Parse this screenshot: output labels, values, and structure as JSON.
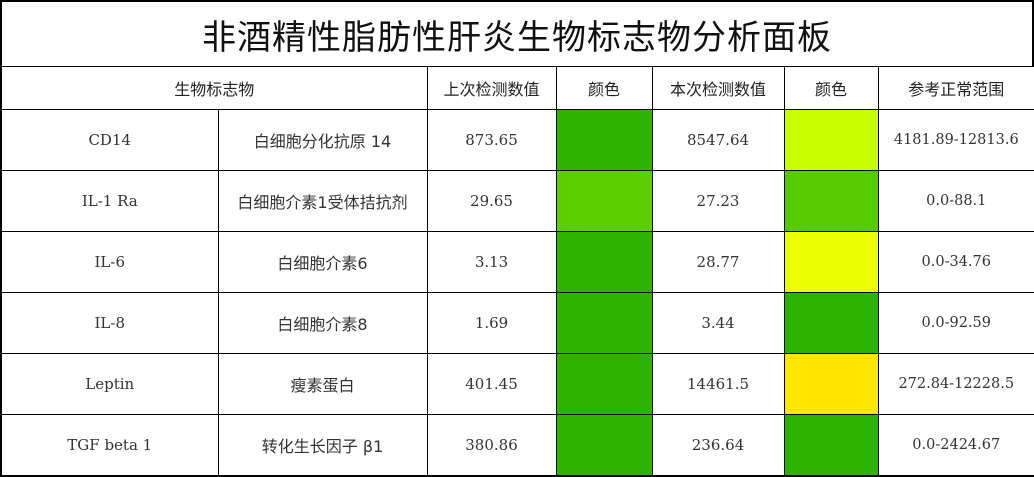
{
  "title": "非酒精性脂肪性肝炎生物标志物分析面板",
  "header": {
    "biomarker": "生物标志物",
    "previous_value": "上次检测数值",
    "previous_color": "颜色",
    "current_value": "本次检测数值",
    "current_color": "颜色",
    "reference_range": "参考正常范围"
  },
  "rows": [
    {
      "code": "CD14",
      "name": "白细胞分化抗原 14",
      "previous": "873.65",
      "previous_color": "#2db400",
      "current": "8547.64",
      "current_color": "#c6ff00",
      "range": "4181.89-12813.6"
    },
    {
      "code": "IL-1 Ra",
      "name": "白细胞介素1受体拮抗剂",
      "previous": "29.65",
      "previous_color": "#5ccf00",
      "current": "27.23",
      "current_color": "#55cb00",
      "range": "0.0-88.1"
    },
    {
      "code": "IL-6",
      "name": "白细胞介素6",
      "previous": "3.13",
      "previous_color": "#2db400",
      "current": "28.77",
      "current_color": "#ebff00",
      "range": "0.0-34.76"
    },
    {
      "code": "IL-8",
      "name": "白细胞介素8",
      "previous": "1.69",
      "previous_color": "#2db400",
      "current": "3.44",
      "current_color": "#2db400",
      "range": "0.0-92.59"
    },
    {
      "code": "Leptin",
      "name": "瘦素蛋白",
      "previous": "401.45",
      "previous_color": "#2db400",
      "current": "14461.5",
      "current_color": "#ffe600",
      "range": "272.84-12228.5"
    },
    {
      "code": "TGF beta 1",
      "name": "转化生长因子 β1",
      "previous": "380.86",
      "previous_color": "#2db400",
      "current": "236.64",
      "current_color": "#2db400",
      "range": "0.0-2424.67"
    }
  ]
}
